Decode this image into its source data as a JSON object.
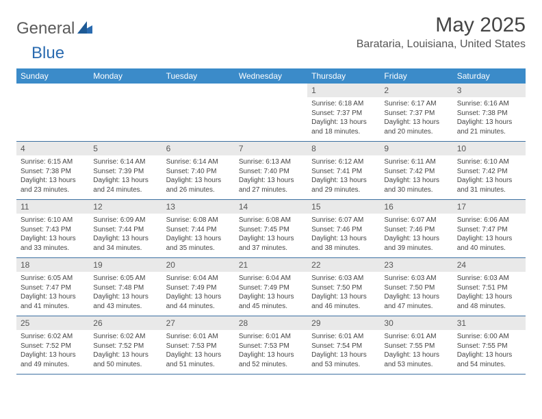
{
  "logo": {
    "general": "General",
    "blue": "Blue"
  },
  "title": "May 2025",
  "location": "Barataria, Louisiana, United States",
  "colors": {
    "header_bg": "#3b8bc9",
    "header_text": "#ffffff",
    "daynum_bg": "#e9e9e9",
    "row_border": "#3b6fa0",
    "logo_gray": "#5a5a5a",
    "logo_blue": "#2a6bb0"
  },
  "dow": [
    "Sunday",
    "Monday",
    "Tuesday",
    "Wednesday",
    "Thursday",
    "Friday",
    "Saturday"
  ],
  "weeks": [
    [
      {
        "empty": true
      },
      {
        "empty": true
      },
      {
        "empty": true
      },
      {
        "empty": true
      },
      {
        "n": "1",
        "sr": "Sunrise: 6:18 AM",
        "ss": "Sunset: 7:37 PM",
        "dl": "Daylight: 13 hours and 18 minutes."
      },
      {
        "n": "2",
        "sr": "Sunrise: 6:17 AM",
        "ss": "Sunset: 7:37 PM",
        "dl": "Daylight: 13 hours and 20 minutes."
      },
      {
        "n": "3",
        "sr": "Sunrise: 6:16 AM",
        "ss": "Sunset: 7:38 PM",
        "dl": "Daylight: 13 hours and 21 minutes."
      }
    ],
    [
      {
        "n": "4",
        "sr": "Sunrise: 6:15 AM",
        "ss": "Sunset: 7:38 PM",
        "dl": "Daylight: 13 hours and 23 minutes."
      },
      {
        "n": "5",
        "sr": "Sunrise: 6:14 AM",
        "ss": "Sunset: 7:39 PM",
        "dl": "Daylight: 13 hours and 24 minutes."
      },
      {
        "n": "6",
        "sr": "Sunrise: 6:14 AM",
        "ss": "Sunset: 7:40 PM",
        "dl": "Daylight: 13 hours and 26 minutes."
      },
      {
        "n": "7",
        "sr": "Sunrise: 6:13 AM",
        "ss": "Sunset: 7:40 PM",
        "dl": "Daylight: 13 hours and 27 minutes."
      },
      {
        "n": "8",
        "sr": "Sunrise: 6:12 AM",
        "ss": "Sunset: 7:41 PM",
        "dl": "Daylight: 13 hours and 29 minutes."
      },
      {
        "n": "9",
        "sr": "Sunrise: 6:11 AM",
        "ss": "Sunset: 7:42 PM",
        "dl": "Daylight: 13 hours and 30 minutes."
      },
      {
        "n": "10",
        "sr": "Sunrise: 6:10 AM",
        "ss": "Sunset: 7:42 PM",
        "dl": "Daylight: 13 hours and 31 minutes."
      }
    ],
    [
      {
        "n": "11",
        "sr": "Sunrise: 6:10 AM",
        "ss": "Sunset: 7:43 PM",
        "dl": "Daylight: 13 hours and 33 minutes."
      },
      {
        "n": "12",
        "sr": "Sunrise: 6:09 AM",
        "ss": "Sunset: 7:44 PM",
        "dl": "Daylight: 13 hours and 34 minutes."
      },
      {
        "n": "13",
        "sr": "Sunrise: 6:08 AM",
        "ss": "Sunset: 7:44 PM",
        "dl": "Daylight: 13 hours and 35 minutes."
      },
      {
        "n": "14",
        "sr": "Sunrise: 6:08 AM",
        "ss": "Sunset: 7:45 PM",
        "dl": "Daylight: 13 hours and 37 minutes."
      },
      {
        "n": "15",
        "sr": "Sunrise: 6:07 AM",
        "ss": "Sunset: 7:46 PM",
        "dl": "Daylight: 13 hours and 38 minutes."
      },
      {
        "n": "16",
        "sr": "Sunrise: 6:07 AM",
        "ss": "Sunset: 7:46 PM",
        "dl": "Daylight: 13 hours and 39 minutes."
      },
      {
        "n": "17",
        "sr": "Sunrise: 6:06 AM",
        "ss": "Sunset: 7:47 PM",
        "dl": "Daylight: 13 hours and 40 minutes."
      }
    ],
    [
      {
        "n": "18",
        "sr": "Sunrise: 6:05 AM",
        "ss": "Sunset: 7:47 PM",
        "dl": "Daylight: 13 hours and 41 minutes."
      },
      {
        "n": "19",
        "sr": "Sunrise: 6:05 AM",
        "ss": "Sunset: 7:48 PM",
        "dl": "Daylight: 13 hours and 43 minutes."
      },
      {
        "n": "20",
        "sr": "Sunrise: 6:04 AM",
        "ss": "Sunset: 7:49 PM",
        "dl": "Daylight: 13 hours and 44 minutes."
      },
      {
        "n": "21",
        "sr": "Sunrise: 6:04 AM",
        "ss": "Sunset: 7:49 PM",
        "dl": "Daylight: 13 hours and 45 minutes."
      },
      {
        "n": "22",
        "sr": "Sunrise: 6:03 AM",
        "ss": "Sunset: 7:50 PM",
        "dl": "Daylight: 13 hours and 46 minutes."
      },
      {
        "n": "23",
        "sr": "Sunrise: 6:03 AM",
        "ss": "Sunset: 7:50 PM",
        "dl": "Daylight: 13 hours and 47 minutes."
      },
      {
        "n": "24",
        "sr": "Sunrise: 6:03 AM",
        "ss": "Sunset: 7:51 PM",
        "dl": "Daylight: 13 hours and 48 minutes."
      }
    ],
    [
      {
        "n": "25",
        "sr": "Sunrise: 6:02 AM",
        "ss": "Sunset: 7:52 PM",
        "dl": "Daylight: 13 hours and 49 minutes."
      },
      {
        "n": "26",
        "sr": "Sunrise: 6:02 AM",
        "ss": "Sunset: 7:52 PM",
        "dl": "Daylight: 13 hours and 50 minutes."
      },
      {
        "n": "27",
        "sr": "Sunrise: 6:01 AM",
        "ss": "Sunset: 7:53 PM",
        "dl": "Daylight: 13 hours and 51 minutes."
      },
      {
        "n": "28",
        "sr": "Sunrise: 6:01 AM",
        "ss": "Sunset: 7:53 PM",
        "dl": "Daylight: 13 hours and 52 minutes."
      },
      {
        "n": "29",
        "sr": "Sunrise: 6:01 AM",
        "ss": "Sunset: 7:54 PM",
        "dl": "Daylight: 13 hours and 53 minutes."
      },
      {
        "n": "30",
        "sr": "Sunrise: 6:01 AM",
        "ss": "Sunset: 7:55 PM",
        "dl": "Daylight: 13 hours and 53 minutes."
      },
      {
        "n": "31",
        "sr": "Sunrise: 6:00 AM",
        "ss": "Sunset: 7:55 PM",
        "dl": "Daylight: 13 hours and 54 minutes."
      }
    ]
  ]
}
